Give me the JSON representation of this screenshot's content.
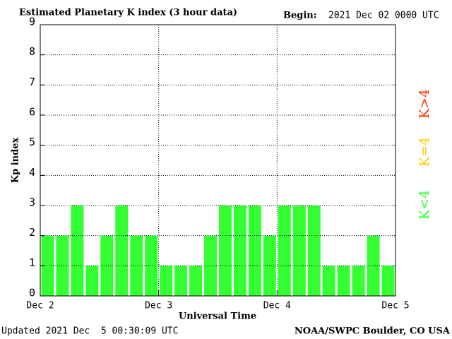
{
  "chart_data": {
    "type": "bar",
    "title": "Estimated Planetary K index (3 hour data)",
    "begin_label": "Begin:",
    "begin_value": "2021 Dec 02 0000 UTC",
    "y_label": "Kp index",
    "x_label": "Universal Time",
    "updated": "Updated 2021 Dec  5 00:30:09 UTC",
    "source": "NOAA/SWPC Boulder, CO USA",
    "categories": [
      null,
      null,
      null,
      null,
      null,
      null,
      null,
      null,
      null,
      null,
      null,
      null,
      null,
      null,
      null,
      null,
      null,
      null,
      null,
      null,
      null,
      null,
      null,
      null
    ],
    "values": [
      2,
      2,
      3,
      1,
      2,
      3,
      2,
      2,
      1,
      1,
      1,
      2,
      3,
      3,
      3,
      2,
      3,
      3,
      3,
      1,
      1,
      1,
      2,
      1
    ],
    "color": "#33ff33",
    "xlim": [
      0,
      24
    ],
    "xticks": [
      {
        "value": 0,
        "label": "Dec 2"
      },
      {
        "value": 8,
        "label": "Dec 3"
      },
      {
        "value": 16,
        "label": "Dec 4"
      },
      {
        "value": 24,
        "label": "Dec 5"
      }
    ],
    "ylim": [
      0,
      9
    ],
    "yticks": [
      0,
      1,
      2,
      3,
      4,
      5,
      6,
      7,
      8,
      9
    ],
    "grid": true,
    "legend": [
      {
        "name": "K<4",
        "color": "#33ff33"
      },
      {
        "name": "K=4",
        "color": "#ffcc00"
      },
      {
        "name": "K>4",
        "color": "#ff3300"
      }
    ]
  }
}
